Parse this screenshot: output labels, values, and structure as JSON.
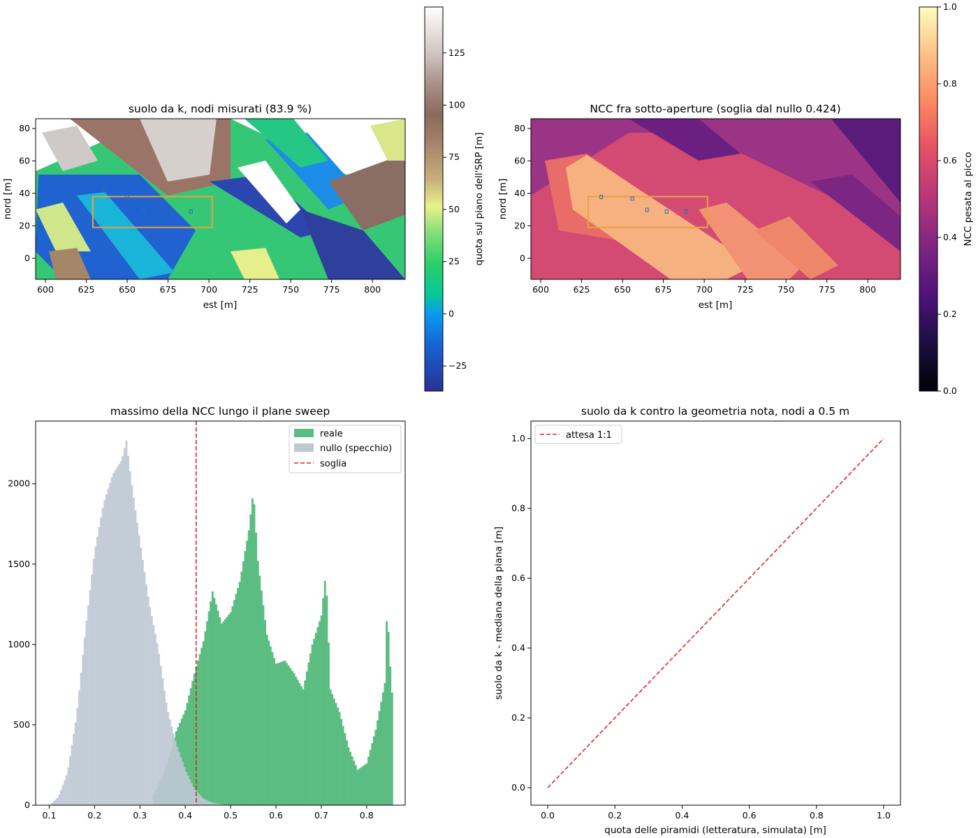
{
  "colors": {
    "reale": "#5bbd81",
    "nullo": "#bec8d4",
    "soglia": "#d62728",
    "box": "#e8a33b"
  },
  "chart_data": [
    {
      "type": "heatmap",
      "title": "suolo da k, nodi misurati (83.9 %)",
      "xlabel": "est [m]",
      "ylabel": "nord [m]",
      "xlim": [
        594,
        820
      ],
      "ylim": [
        -13,
        86
      ],
      "xticks": [
        "600",
        "625",
        "650",
        "675",
        "700",
        "725",
        "750",
        "775",
        "800"
      ],
      "yticks": [
        "0",
        "20",
        "40",
        "60",
        "80"
      ],
      "colorbar": {
        "label": "quota sul piano dell'SRP [m]",
        "range": [
          -37,
          147
        ],
        "ticks": [
          "−25",
          "0",
          "25",
          "50",
          "75",
          "100",
          "125"
        ],
        "colormap": "terrain"
      },
      "box": {
        "x": [
          629,
          702
        ],
        "y": [
          19,
          38
        ]
      },
      "markers": [
        [
          636,
          42
        ],
        [
          650,
          38
        ],
        [
          660,
          30
        ],
        [
          677,
          29
        ],
        [
          689,
          29
        ]
      ]
    },
    {
      "type": "heatmap",
      "title": "NCC fra sotto-aperture (soglia dal nullo 0.424)",
      "xlabel": "est [m]",
      "ylabel": "nord [m]",
      "xlim": [
        594,
        820
      ],
      "ylim": [
        -13,
        86
      ],
      "xticks": [
        "600",
        "625",
        "650",
        "675",
        "700",
        "725",
        "750",
        "775",
        "800"
      ],
      "yticks": [
        "0",
        "20",
        "40",
        "60",
        "80"
      ],
      "colorbar": {
        "label": "NCC pesata al picco",
        "range": [
          0,
          1
        ],
        "ticks": [
          "0.0",
          "0.2",
          "0.4",
          "0.6",
          "0.8",
          "1.0"
        ],
        "colormap": "magma"
      },
      "box": {
        "x": [
          629,
          702
        ],
        "y": [
          19,
          38
        ]
      },
      "markers": [
        [
          637,
          38
        ],
        [
          656,
          37
        ],
        [
          665,
          30
        ],
        [
          677,
          29
        ],
        [
          689,
          29
        ]
      ]
    },
    {
      "type": "bar",
      "title": "massimo della NCC lungo il plane sweep",
      "xlim": [
        0.07,
        0.885
      ],
      "ylim": [
        0,
        2390
      ],
      "xticks": [
        "0.1",
        "0.2",
        "0.3",
        "0.4",
        "0.5",
        "0.6",
        "0.7",
        "0.8"
      ],
      "yticks": [
        "0",
        "500",
        "1000",
        "1500",
        "2000"
      ],
      "bin_width": 0.004,
      "series": [
        {
          "name": "nullo (specchio)",
          "x": [
            0.1,
            0.12,
            0.14,
            0.16,
            0.18,
            0.2,
            0.22,
            0.24,
            0.26,
            0.27,
            0.28,
            0.3,
            0.32,
            0.34,
            0.36,
            0.38,
            0.4,
            0.42,
            0.44,
            0.46,
            0.48,
            0.5
          ],
          "y": [
            0,
            50,
            200,
            550,
            1100,
            1580,
            1880,
            2060,
            2150,
            2270,
            2030,
            1640,
            1260,
            980,
            600,
            380,
            220,
            100,
            40,
            15,
            5,
            0
          ]
        },
        {
          "name": "reale",
          "x": [
            0.33,
            0.36,
            0.38,
            0.4,
            0.42,
            0.44,
            0.46,
            0.48,
            0.5,
            0.52,
            0.54,
            0.55,
            0.56,
            0.58,
            0.6,
            0.62,
            0.64,
            0.66,
            0.68,
            0.7,
            0.71,
            0.72,
            0.74,
            0.76,
            0.78,
            0.8,
            0.82,
            0.84,
            0.845,
            0.855
          ],
          "y": [
            60,
            250,
            460,
            590,
            820,
            1020,
            1330,
            1130,
            1200,
            1390,
            1710,
            1960,
            1520,
            1060,
            880,
            900,
            820,
            720,
            1000,
            1180,
            1450,
            720,
            580,
            360,
            220,
            260,
            470,
            760,
            1240,
            700
          ]
        },
        {
          "name": "soglia",
          "x": [
            0.424
          ]
        }
      ]
    },
    {
      "type": "line",
      "title": "suolo da k contro la geometria nota, nodi a 0.5 m",
      "xlabel": "quota delle piramidi (letteratura, simulata) [m]",
      "ylabel": "suolo da k - mediana della piana [m]",
      "xlim": [
        -0.05,
        1.05
      ],
      "ylim": [
        -0.05,
        1.05
      ],
      "xticks": [
        "0.0",
        "0.2",
        "0.4",
        "0.6",
        "0.8",
        "1.0"
      ],
      "yticks": [
        "0.0",
        "0.2",
        "0.4",
        "0.6",
        "0.8",
        "1.0"
      ],
      "series": [
        {
          "name": "attesa 1:1",
          "x": [
            0,
            1
          ],
          "y": [
            0,
            1
          ]
        }
      ]
    }
  ]
}
